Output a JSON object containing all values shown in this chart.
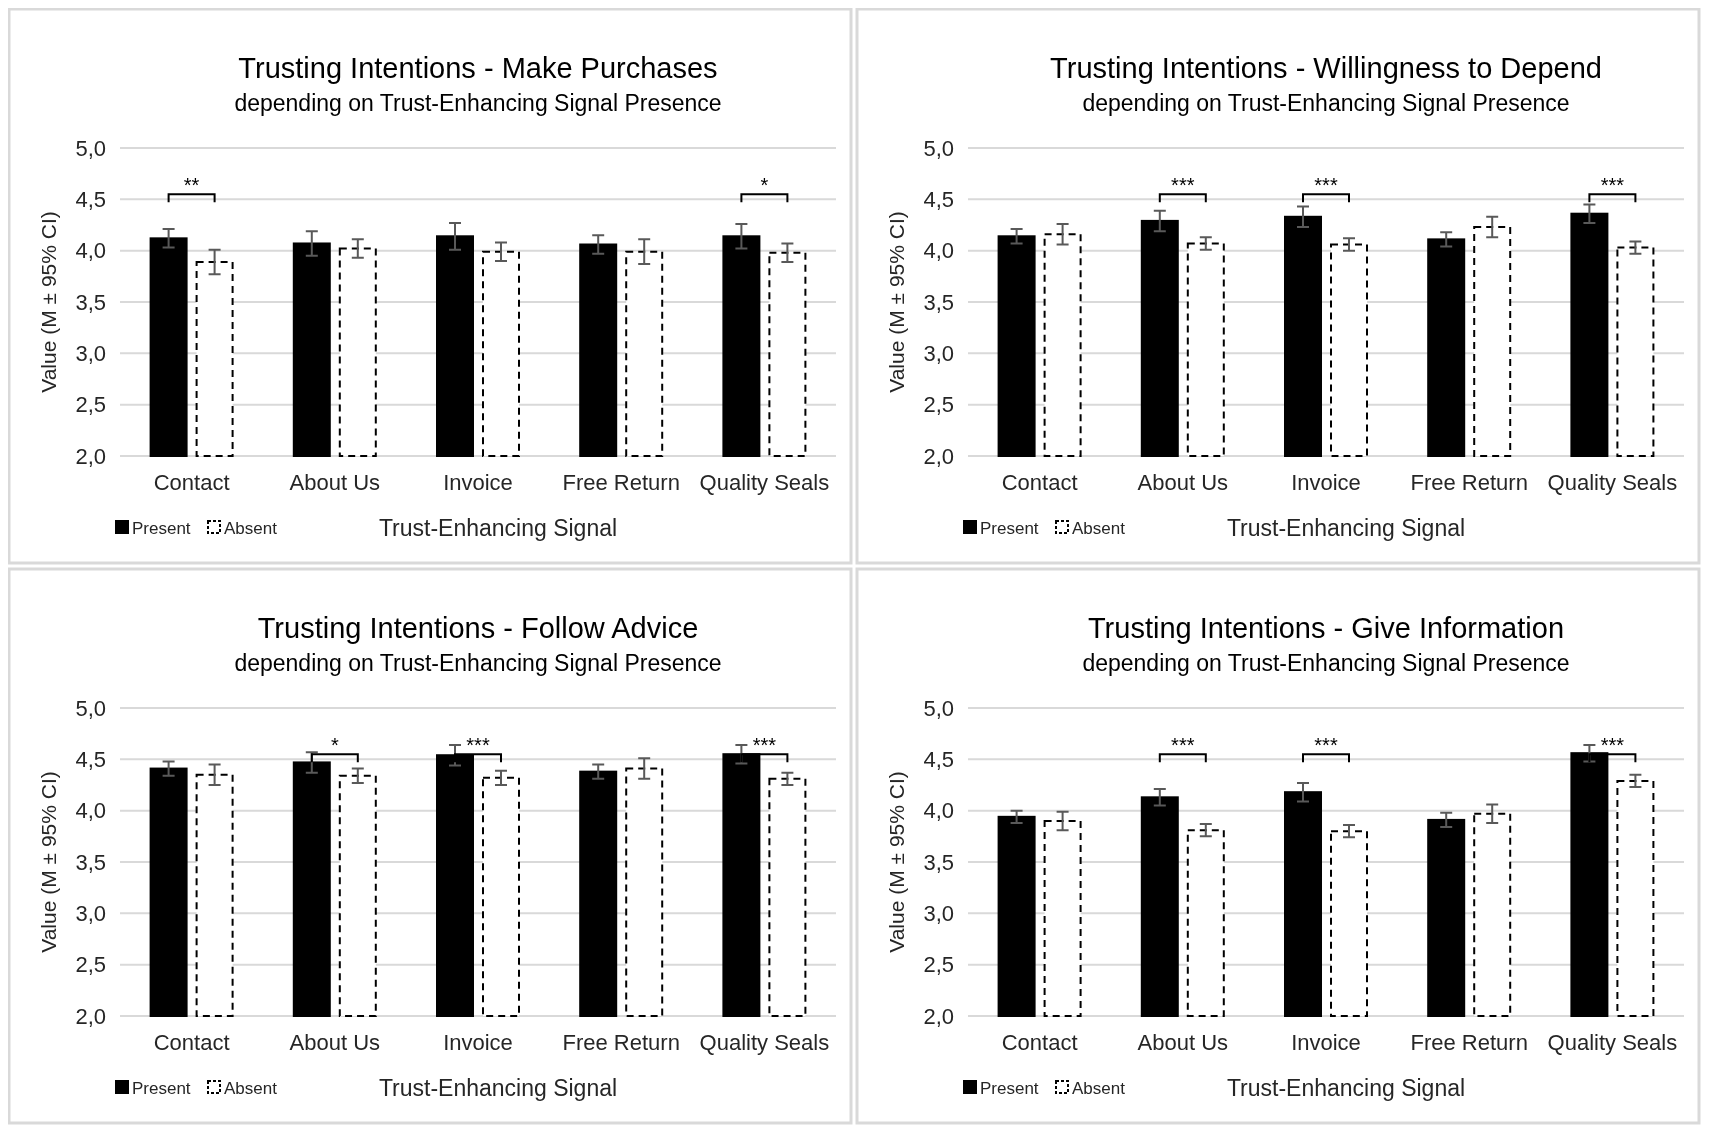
{
  "chart_data": [
    {
      "type": "bar",
      "title": "Trusting Intentions - Make Purchases",
      "subtitle": "depending on Trust-Enhancing Signal Presence",
      "xlabel": "Trust-Enhancing Signal",
      "ylabel": "Value (M ± 95% CI)",
      "categories": [
        "Contact",
        "About Us",
        "Invoice",
        "Free Return",
        "Quality Seals"
      ],
      "ylim": [
        2,
        5
      ],
      "yticks": [
        {
          "value": 2,
          "label": "2,0"
        },
        {
          "value": 2.5,
          "label": "2,5"
        },
        {
          "value": 3,
          "label": "3,0"
        },
        {
          "value": 3.5,
          "label": "3,5"
        },
        {
          "value": 4,
          "label": "4,0"
        },
        {
          "value": 4.5,
          "label": "4,5"
        },
        {
          "value": 5,
          "label": "5,0"
        }
      ],
      "grid": "y",
      "legend": "bottom left",
      "annotations": [
        "**",
        "*"
      ],
      "series": [
        {
          "name": "Present",
          "color": "#000000",
          "line_style": "solid",
          "values": [
            4.12,
            4.07,
            4.14,
            4.06,
            4.14
          ],
          "errors": [
            0.09,
            0.12,
            0.13,
            0.09,
            0.12
          ]
        },
        {
          "name": "Absent",
          "color": "#ffffff",
          "line_style": "dashed",
          "values": [
            3.89,
            4.02,
            3.99,
            3.99,
            3.98
          ],
          "errors": [
            0.12,
            0.09,
            0.09,
            0.12,
            0.09
          ]
        }
      ]
    },
    {
      "type": "bar",
      "title": "Trusting Intentions - Willingness to Depend",
      "subtitle": "depending on Trust-Enhancing Signal Presence",
      "xlabel": "Trust-Enhancing Signal",
      "ylabel": "Value (M ± 95% CI)",
      "categories": [
        "Contact",
        "About Us",
        "Invoice",
        "Free Return",
        "Quality Seals"
      ],
      "ylim": [
        2,
        5
      ],
      "yticks": [
        {
          "value": 2,
          "label": "2,0"
        },
        {
          "value": 2.5,
          "label": "2,5"
        },
        {
          "value": 3,
          "label": "3,0"
        },
        {
          "value": 3.5,
          "label": "3,5"
        },
        {
          "value": 4,
          "label": "4,0"
        },
        {
          "value": 4.5,
          "label": "4,5"
        },
        {
          "value": 5,
          "label": "5,0"
        }
      ],
      "grid": "y",
      "legend": "bottom left",
      "annotations": [
        "***",
        "***",
        "***"
      ],
      "series": [
        {
          "name": "Present",
          "color": "#000000",
          "line_style": "solid",
          "values": [
            4.14,
            4.29,
            4.33,
            4.11,
            4.36
          ],
          "errors": [
            0.07,
            0.1,
            0.1,
            0.07,
            0.09
          ]
        },
        {
          "name": "Absent",
          "color": "#ffffff",
          "line_style": "dashed",
          "values": [
            4.16,
            4.07,
            4.06,
            4.23,
            4.03
          ],
          "errors": [
            0.1,
            0.06,
            0.06,
            0.1,
            0.06
          ]
        }
      ]
    },
    {
      "type": "bar",
      "title": "Trusting Intentions - Follow Advice",
      "subtitle": "depending on Trust-Enhancing Signal Presence",
      "xlabel": "Trust-Enhancing Signal",
      "ylabel": "Value (M ± 95% CI)",
      "categories": [
        "Contact",
        "About Us",
        "Invoice",
        "Free Return",
        "Quality Seals"
      ],
      "ylim": [
        2,
        5
      ],
      "yticks": [
        {
          "value": 2,
          "label": "2,0"
        },
        {
          "value": 2.5,
          "label": "2,5"
        },
        {
          "value": 3,
          "label": "3,0"
        },
        {
          "value": 3.5,
          "label": "3,5"
        },
        {
          "value": 4,
          "label": "4,0"
        },
        {
          "value": 4.5,
          "label": "4,5"
        },
        {
          "value": 5,
          "label": "5,0"
        }
      ],
      "grid": "y",
      "legend": "bottom left",
      "annotations": [
        "*",
        "***",
        "***"
      ],
      "series": [
        {
          "name": "Present",
          "color": "#000000",
          "line_style": "solid",
          "values": [
            4.41,
            4.47,
            4.54,
            4.38,
            4.55
          ],
          "errors": [
            0.07,
            0.1,
            0.1,
            0.07,
            0.09
          ]
        },
        {
          "name": "Absent",
          "color": "#ffffff",
          "line_style": "dashed",
          "values": [
            4.35,
            4.34,
            4.32,
            4.41,
            4.31
          ],
          "errors": [
            0.1,
            0.07,
            0.07,
            0.1,
            0.06
          ]
        }
      ]
    },
    {
      "type": "bar",
      "title": "Trusting Intentions - Give Information",
      "subtitle": "depending on Trust-Enhancing Signal Presence",
      "xlabel": "Trust-Enhancing Signal",
      "ylabel": "Value (M ± 95% CI)",
      "categories": [
        "Contact",
        "About Us",
        "Invoice",
        "Free Return",
        "Quality Seals"
      ],
      "ylim": [
        2,
        5
      ],
      "yticks": [
        {
          "value": 2,
          "label": "2,0"
        },
        {
          "value": 2.5,
          "label": "2,5"
        },
        {
          "value": 3,
          "label": "3,0"
        },
        {
          "value": 3.5,
          "label": "3,5"
        },
        {
          "value": 4,
          "label": "4,0"
        },
        {
          "value": 4.5,
          "label": "4,5"
        },
        {
          "value": 5,
          "label": "5,0"
        }
      ],
      "grid": "y",
      "legend": "bottom left",
      "annotations": [
        "***",
        "***",
        "***"
      ],
      "series": [
        {
          "name": "Present",
          "color": "#000000",
          "line_style": "solid",
          "values": [
            3.94,
            4.13,
            4.18,
            3.91,
            4.56
          ],
          "errors": [
            0.06,
            0.08,
            0.09,
            0.07,
            0.08
          ]
        },
        {
          "name": "Absent",
          "color": "#ffffff",
          "line_style": "dashed",
          "values": [
            3.9,
            3.81,
            3.8,
            3.97,
            4.29
          ],
          "errors": [
            0.09,
            0.06,
            0.06,
            0.09,
            0.06
          ]
        }
      ]
    }
  ]
}
